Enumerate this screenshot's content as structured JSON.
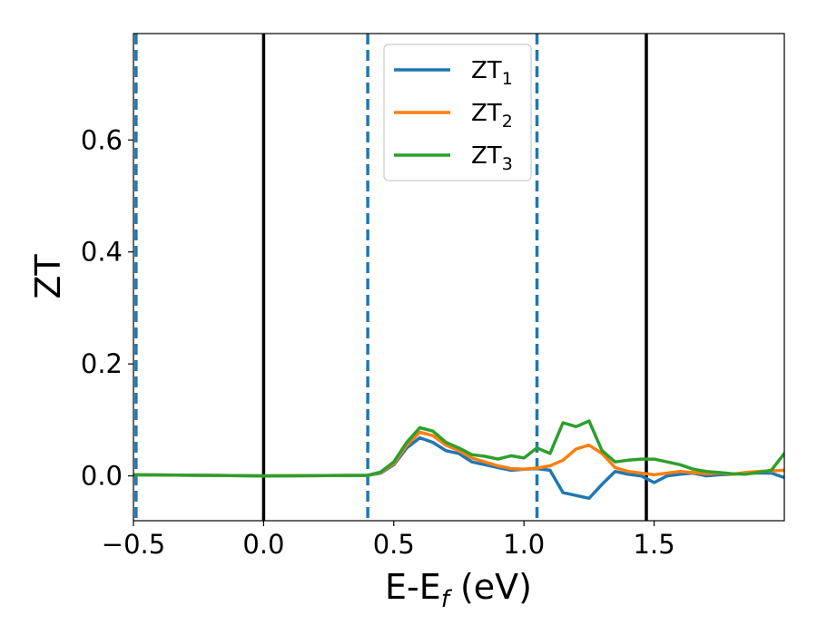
{
  "chart_data": {
    "type": "line",
    "title": "",
    "xlabel": "E-E",
    "xlabel_subscript": "f",
    "xlabel_unit": " (eV)",
    "ylabel": "ZT",
    "xlim": [
      -0.5,
      2.0
    ],
    "ylim": [
      -0.08,
      0.79
    ],
    "xticks": [
      -0.5,
      0.0,
      0.5,
      1.0,
      1.5
    ],
    "xtick_labels": [
      "−0.5",
      "0.0",
      "0.5",
      "1.0",
      "1.5"
    ],
    "yticks": [
      0.0,
      0.2,
      0.4,
      0.6
    ],
    "ytick_labels": [
      "0.0",
      "0.2",
      "0.4",
      "0.6"
    ],
    "grid": false,
    "legend_position": "top-center",
    "vlines": [
      {
        "x": -0.49,
        "style": "dashed",
        "color": "#1f77b4"
      },
      {
        "x": 0.0,
        "style": "solid",
        "color": "#000000"
      },
      {
        "x": 0.4,
        "style": "dashed",
        "color": "#1f77b4"
      },
      {
        "x": 1.05,
        "style": "dashed",
        "color": "#1f77b4"
      },
      {
        "x": 1.47,
        "style": "solid",
        "color": "#000000"
      }
    ],
    "series": [
      {
        "name": "ZT",
        "sub": "1",
        "color": "#1f77b4",
        "x": [
          -0.5,
          0.0,
          0.4,
          0.45,
          0.5,
          0.55,
          0.6,
          0.65,
          0.7,
          0.75,
          0.8,
          0.85,
          0.9,
          0.95,
          1.0,
          1.05,
          1.1,
          1.15,
          1.2,
          1.25,
          1.3,
          1.35,
          1.4,
          1.45,
          1.5,
          1.55,
          1.6,
          1.65,
          1.7,
          1.75,
          1.8,
          1.85,
          1.9,
          1.95,
          2.0
        ],
        "y": [
          0.002,
          0.0,
          0.001,
          0.005,
          0.02,
          0.05,
          0.068,
          0.06,
          0.045,
          0.04,
          0.025,
          0.02,
          0.015,
          0.01,
          0.012,
          0.013,
          0.01,
          -0.03,
          -0.035,
          -0.04,
          -0.015,
          0.008,
          0.003,
          0.0,
          -0.012,
          0.0,
          0.003,
          0.005,
          0.0,
          0.002,
          0.003,
          0.005,
          0.005,
          0.005,
          -0.003
        ]
      },
      {
        "name": "ZT",
        "sub": "2",
        "color": "#ff7f0e",
        "x": [
          -0.5,
          0.0,
          0.4,
          0.45,
          0.5,
          0.55,
          0.6,
          0.65,
          0.7,
          0.75,
          0.8,
          0.85,
          0.9,
          0.95,
          1.0,
          1.05,
          1.1,
          1.15,
          1.2,
          1.25,
          1.3,
          1.35,
          1.4,
          1.45,
          1.5,
          1.55,
          1.6,
          1.65,
          1.7,
          1.75,
          1.8,
          1.85,
          1.9,
          1.95,
          2.0
        ],
        "y": [
          0.002,
          0.0,
          0.001,
          0.006,
          0.022,
          0.055,
          0.078,
          0.072,
          0.055,
          0.045,
          0.032,
          0.025,
          0.018,
          0.013,
          0.012,
          0.014,
          0.018,
          0.028,
          0.048,
          0.055,
          0.04,
          0.015,
          0.008,
          0.005,
          0.002,
          0.005,
          0.008,
          0.006,
          0.004,
          0.005,
          0.003,
          0.006,
          0.008,
          0.009,
          0.01
        ]
      },
      {
        "name": "ZT",
        "sub": "3",
        "color": "#2ca02c",
        "x": [
          -0.5,
          0.0,
          0.4,
          0.45,
          0.5,
          0.55,
          0.6,
          0.65,
          0.7,
          0.75,
          0.8,
          0.85,
          0.9,
          0.95,
          1.0,
          1.05,
          1.1,
          1.15,
          1.2,
          1.25,
          1.3,
          1.35,
          1.4,
          1.45,
          1.5,
          1.55,
          1.6,
          1.65,
          1.7,
          1.75,
          1.8,
          1.85,
          1.9,
          1.95,
          2.0
        ],
        "y": [
          0.002,
          0.0,
          0.001,
          0.007,
          0.025,
          0.06,
          0.086,
          0.08,
          0.06,
          0.05,
          0.038,
          0.035,
          0.03,
          0.036,
          0.032,
          0.05,
          0.04,
          0.095,
          0.088,
          0.098,
          0.045,
          0.025,
          0.028,
          0.03,
          0.03,
          0.025,
          0.02,
          0.012,
          0.008,
          0.006,
          0.004,
          0.003,
          0.006,
          0.01,
          0.04
        ]
      }
    ]
  }
}
